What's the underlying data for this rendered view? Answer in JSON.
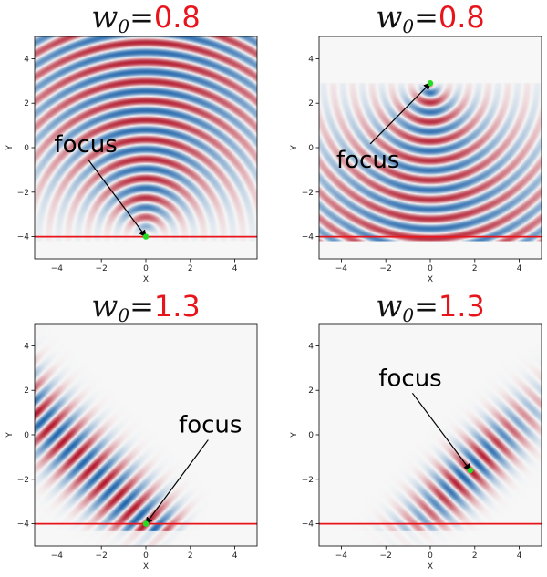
{
  "colors": {
    "title_value": "#e8141b",
    "boundary_line": "#e8141b",
    "focus_point": "#22dd22",
    "wave_positive": "#b2182b",
    "wave_negative": "#2166ac",
    "background": "#f7f7f7"
  },
  "chart_data": [
    {
      "type": "heatmap",
      "title_symbol": "w",
      "title_subscript": "0",
      "title_equals": "=",
      "title_value": "0.8",
      "xlabel": "X",
      "ylabel": "Y",
      "xlim": [
        -5,
        5
      ],
      "ylim": [
        -5,
        5
      ],
      "xticks": [
        "−4",
        "−2",
        "0",
        "2",
        "4"
      ],
      "yticks": [
        "−4",
        "−2",
        "0",
        "2",
        "4"
      ],
      "boundary_y": -4,
      "focus": [
        0,
        -4
      ],
      "wave_source": [
        0,
        -4
      ],
      "annotation": "focus",
      "annotation_anchor": [
        -2.7,
        -0.2
      ]
    },
    {
      "type": "heatmap",
      "title_symbol": "w",
      "title_subscript": "0",
      "title_equals": "=",
      "title_value": "0.8",
      "xlabel": "X",
      "ylabel": "Y",
      "xlim": [
        -5,
        5
      ],
      "ylim": [
        -5,
        5
      ],
      "xticks": [
        "−4",
        "−2",
        "0",
        "2",
        "4"
      ],
      "yticks": [
        "−4",
        "−2",
        "0",
        "2",
        "4"
      ],
      "boundary_y": -4,
      "focus": [
        0,
        2.9
      ],
      "wave_source": [
        0,
        2.9
      ],
      "annotation": "focus",
      "annotation_anchor": [
        -2.8,
        -0.9
      ]
    },
    {
      "type": "heatmap",
      "title_symbol": "w",
      "title_subscript": "0",
      "title_equals": "=",
      "title_value": "1.3",
      "xlabel": "X",
      "ylabel": "Y",
      "xlim": [
        -5,
        5
      ],
      "ylim": [
        -5,
        5
      ],
      "xticks": [
        "−4",
        "−2",
        "0",
        "2",
        "4"
      ],
      "yticks": [
        "−4",
        "−2",
        "0",
        "2",
        "4"
      ],
      "boundary_y": -4,
      "focus": [
        0,
        -4
      ],
      "wave_source": [
        0,
        -4
      ],
      "beam_direction_deg": 135,
      "annotation": "focus",
      "annotation_anchor": [
        2.9,
        0.1
      ]
    },
    {
      "type": "heatmap",
      "title_symbol": "w",
      "title_subscript": "0",
      "title_equals": "=",
      "title_value": "1.3",
      "xlabel": "X",
      "ylabel": "Y",
      "xlim": [
        -5,
        5
      ],
      "ylim": [
        -5,
        5
      ],
      "xticks": [
        "−4",
        "−2",
        "0",
        "2",
        "4"
      ],
      "yticks": [
        "−4",
        "−2",
        "0",
        "2",
        "4"
      ],
      "boundary_y": -4,
      "focus": [
        1.8,
        -1.6
      ],
      "wave_source": [
        1.8,
        -1.6
      ],
      "beam_direction_deg": 45,
      "annotation": "focus",
      "annotation_anchor": [
        -0.9,
        2.2
      ]
    }
  ]
}
